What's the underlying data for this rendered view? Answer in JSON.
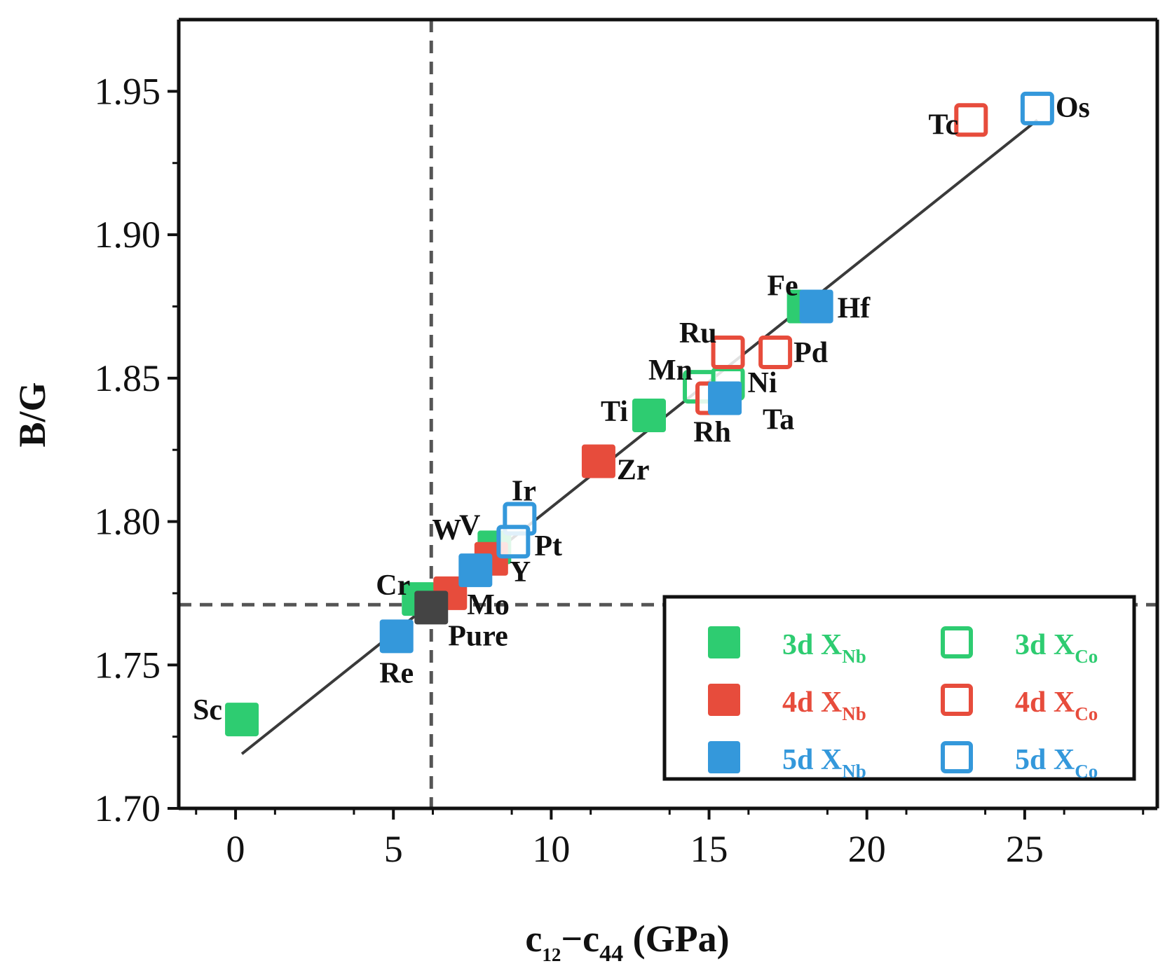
{
  "chart_data": {
    "type": "scatter",
    "xlabel": "c12−c44 (GPa)",
    "xlabel_main": "c",
    "xlabel_sub1": "12",
    "xlabel_dash": "−c",
    "xlabel_sub2": "44",
    "xlabel_unit": " (GPa)",
    "ylabel": "B/G",
    "xlim": [
      -1.8,
      29.2
    ],
    "ylim": [
      1.7,
      1.975
    ],
    "xticks": [
      0,
      5,
      10,
      15,
      20,
      25
    ],
    "xtick_labels": [
      "0",
      "5",
      "10",
      "15",
      "20",
      "25"
    ],
    "yticks": [
      1.7,
      1.75,
      1.8,
      1.85,
      1.9,
      1.95
    ],
    "ytick_labels": [
      "1.70",
      "1.75",
      "1.80",
      "1.85",
      "1.90",
      "1.95"
    ],
    "reference_lines": {
      "x": 6.2,
      "y": 1.771
    },
    "fit_line": {
      "x": [
        0.2,
        25.4
      ],
      "y": [
        1.719,
        1.94
      ]
    },
    "colors": {
      "3d": "#2ecc71",
      "4d": "#e74c3c",
      "5d": "#3498db",
      "pure": "#444444"
    },
    "points": [
      {
        "label": "Sc",
        "x": 0.2,
        "y": 1.731,
        "group": "3d",
        "site": "Nb",
        "filled": true
      },
      {
        "label": "Ti",
        "x": 13.1,
        "y": 1.837,
        "group": "3d",
        "site": "Nb",
        "filled": true
      },
      {
        "label": "V",
        "x": 8.2,
        "y": 1.791,
        "group": "3d",
        "site": "Nb",
        "filled": true
      },
      {
        "label": "Cr",
        "x": 5.8,
        "y": 1.773,
        "group": "3d",
        "site": "Nb",
        "filled": true
      },
      {
        "label": "Fe",
        "x": 18.0,
        "y": 1.875,
        "group": "3d",
        "site": "Nb",
        "filled": true
      },
      {
        "label": "Mn",
        "x": 14.7,
        "y": 1.847,
        "group": "3d",
        "site": "Co",
        "filled": false
      },
      {
        "label": "Ni",
        "x": 15.6,
        "y": 1.848,
        "group": "3d",
        "site": "Co",
        "filled": false
      },
      {
        "label": "Zr",
        "x": 11.5,
        "y": 1.821,
        "group": "4d",
        "site": "Nb",
        "filled": true
      },
      {
        "label": "Y",
        "x": 8.1,
        "y": 1.787,
        "group": "4d",
        "site": "Nb",
        "filled": true
      },
      {
        "label": "Mo",
        "x": 6.8,
        "y": 1.775,
        "group": "4d",
        "site": "Nb",
        "filled": true
      },
      {
        "label": "Tc",
        "x": 23.3,
        "y": 1.94,
        "group": "4d",
        "site": "Co",
        "filled": false
      },
      {
        "label": "Ru",
        "x": 15.6,
        "y": 1.859,
        "group": "4d",
        "site": "Co",
        "filled": false
      },
      {
        "label": "Pd",
        "x": 17.1,
        "y": 1.859,
        "group": "4d",
        "site": "Co",
        "filled": false
      },
      {
        "label": "Rh",
        "x": 15.1,
        "y": 1.843,
        "group": "4d",
        "site": "Co",
        "filled": false
      },
      {
        "label": "Hf",
        "x": 18.4,
        "y": 1.875,
        "group": "5d",
        "site": "Nb",
        "filled": true
      },
      {
        "label": "Ta",
        "x": 15.5,
        "y": 1.843,
        "group": "5d",
        "site": "Nb",
        "filled": true
      },
      {
        "label": "W",
        "x": 7.6,
        "y": 1.783,
        "group": "5d",
        "site": "Nb",
        "filled": true
      },
      {
        "label": "Re",
        "x": 5.1,
        "y": 1.76,
        "group": "5d",
        "site": "Nb",
        "filled": true
      },
      {
        "label": "Os",
        "x": 25.4,
        "y": 1.944,
        "group": "5d",
        "site": "Co",
        "filled": false
      },
      {
        "label": "Ir",
        "x": 9.0,
        "y": 1.801,
        "group": "5d",
        "site": "Co",
        "filled": false
      },
      {
        "label": "Pt",
        "x": 8.8,
        "y": 1.793,
        "group": "5d",
        "site": "Co",
        "filled": false
      },
      {
        "label": "Pure",
        "x": 6.2,
        "y": 1.77,
        "group": "pure",
        "site": "",
        "filled": true
      }
    ],
    "legend": {
      "position": "bottom-right",
      "entries": [
        {
          "group": "3d",
          "filled": true,
          "text": "3d X",
          "sub": "Nb"
        },
        {
          "group": "3d",
          "filled": false,
          "text": "3d X",
          "sub": "Co"
        },
        {
          "group": "4d",
          "filled": true,
          "text": "4d X",
          "sub": "Nb"
        },
        {
          "group": "4d",
          "filled": false,
          "text": "4d X",
          "sub": "Co"
        },
        {
          "group": "5d",
          "filled": true,
          "text": "5d X",
          "sub": "Nb"
        },
        {
          "group": "5d",
          "filled": false,
          "text": "5d X",
          "sub": "Co"
        }
      ]
    }
  }
}
